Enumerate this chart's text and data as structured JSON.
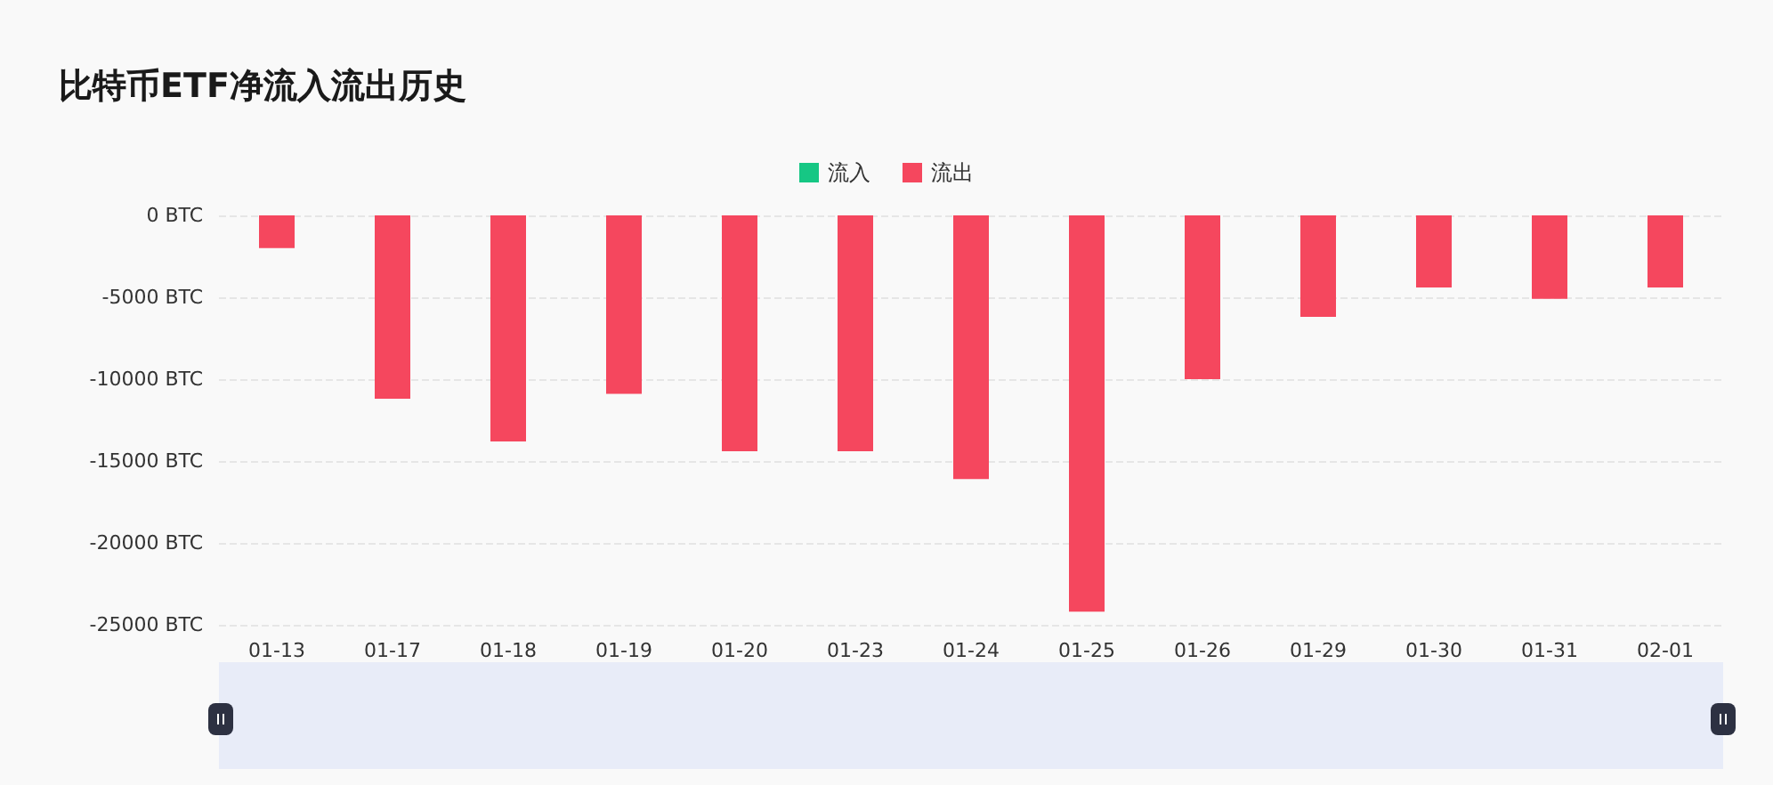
{
  "chart_data": {
    "type": "bar",
    "title": "比特币ETF净流入流出历史",
    "categories": [
      "01-13",
      "01-17",
      "01-18",
      "01-19",
      "01-20",
      "01-23",
      "01-24",
      "01-25",
      "01-26",
      "01-29",
      "01-30",
      "01-31",
      "02-01"
    ],
    "series": [
      {
        "name": "流入",
        "color": "#16c784",
        "values": [
          null,
          null,
          null,
          null,
          null,
          null,
          null,
          null,
          null,
          null,
          null,
          null,
          null
        ]
      },
      {
        "name": "流出",
        "color": "#f5475e",
        "values": [
          -2000,
          -11200,
          -13800,
          -10900,
          -14400,
          -14400,
          -16100,
          -24200,
          -10000,
          -6200,
          -4400,
          -5100,
          -4400
        ]
      }
    ],
    "stacked": true,
    "ylim": [
      -25000,
      0
    ],
    "yticks": [
      {
        "value": -25000,
        "label": "-25000 BTC"
      },
      {
        "value": -20000,
        "label": "-20000 BTC"
      },
      {
        "value": -15000,
        "label": "-15000 BTC"
      },
      {
        "value": -10000,
        "label": "-10000 BTC"
      },
      {
        "value": -5000,
        "label": "-5000 BTC"
      },
      {
        "value": 0,
        "label": "0 BTC"
      }
    ],
    "grid": "y",
    "legend": "top"
  }
}
